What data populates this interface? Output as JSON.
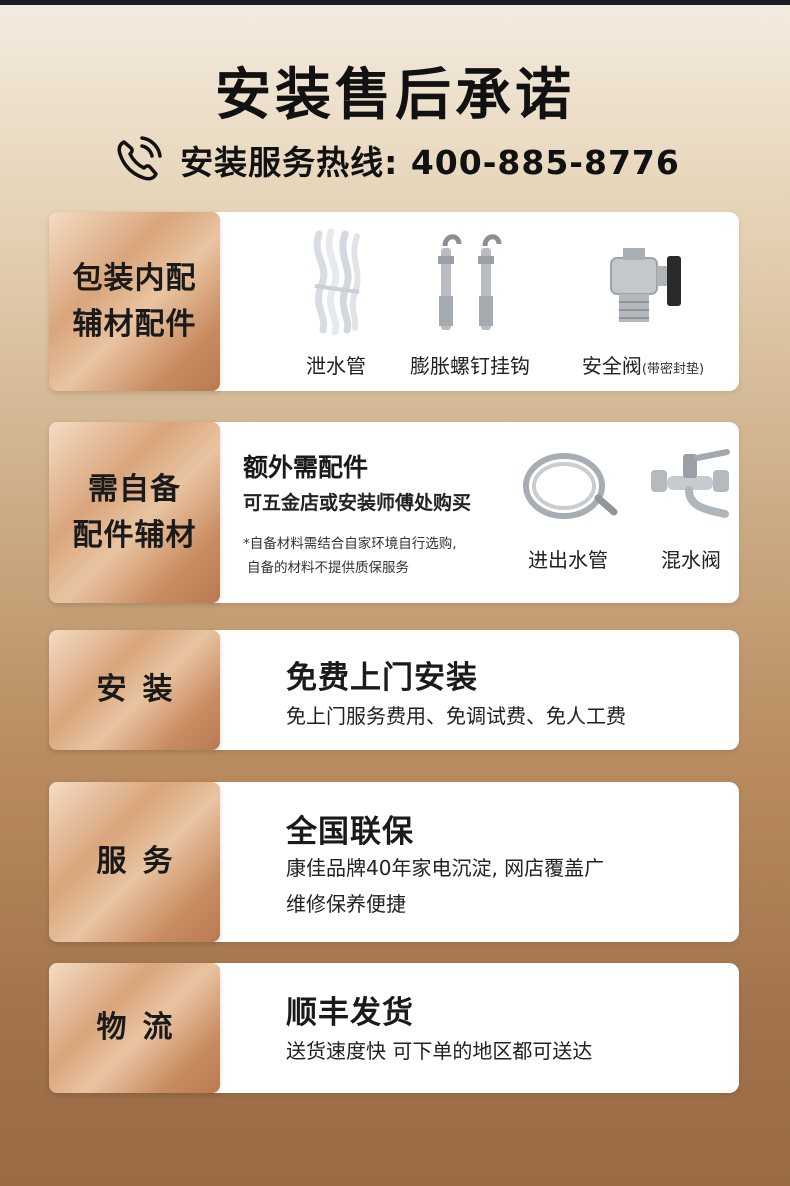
{
  "header": {
    "title": "安装售后承诺",
    "hotline": "安装服务热线: 400-885-8776"
  },
  "rows": [
    {
      "label_lines": [
        "包装内配",
        "辅材配件"
      ],
      "items": [
        {
          "icon": "drain-hose-icon",
          "caption": "泄水管"
        },
        {
          "icon": "expansion-bolt-icon",
          "caption": "膨胀螺钉挂钩"
        },
        {
          "icon": "safety-valve-icon",
          "caption": "安全阀",
          "note": "(带密封垫)"
        }
      ]
    },
    {
      "label_lines": [
        "需自备",
        "配件辅材"
      ],
      "heading": "额外需配件",
      "subheading": "可五金店或安装师傅处购买",
      "notes": [
        "*自备材料需结合自家环境自行选购,",
        "自备的材料不提供质保服务"
      ],
      "items": [
        {
          "icon": "water-hose-icon",
          "caption": "进出水管"
        },
        {
          "icon": "mixing-valve-icon",
          "caption": "混水阀"
        }
      ]
    },
    {
      "label": "安装",
      "heading": "免费上门安装",
      "lines": [
        "免上门服务费用、免调试费、免人工费"
      ]
    },
    {
      "label": "服务",
      "heading": "全国联保",
      "lines": [
        "康佳品牌40年家电沉淀, 网店覆盖广",
        "维修保养便捷"
      ]
    },
    {
      "label": "物流",
      "heading": "顺丰发货",
      "lines": [
        "送货速度快 可下单的地区都可送达"
      ]
    }
  ]
}
